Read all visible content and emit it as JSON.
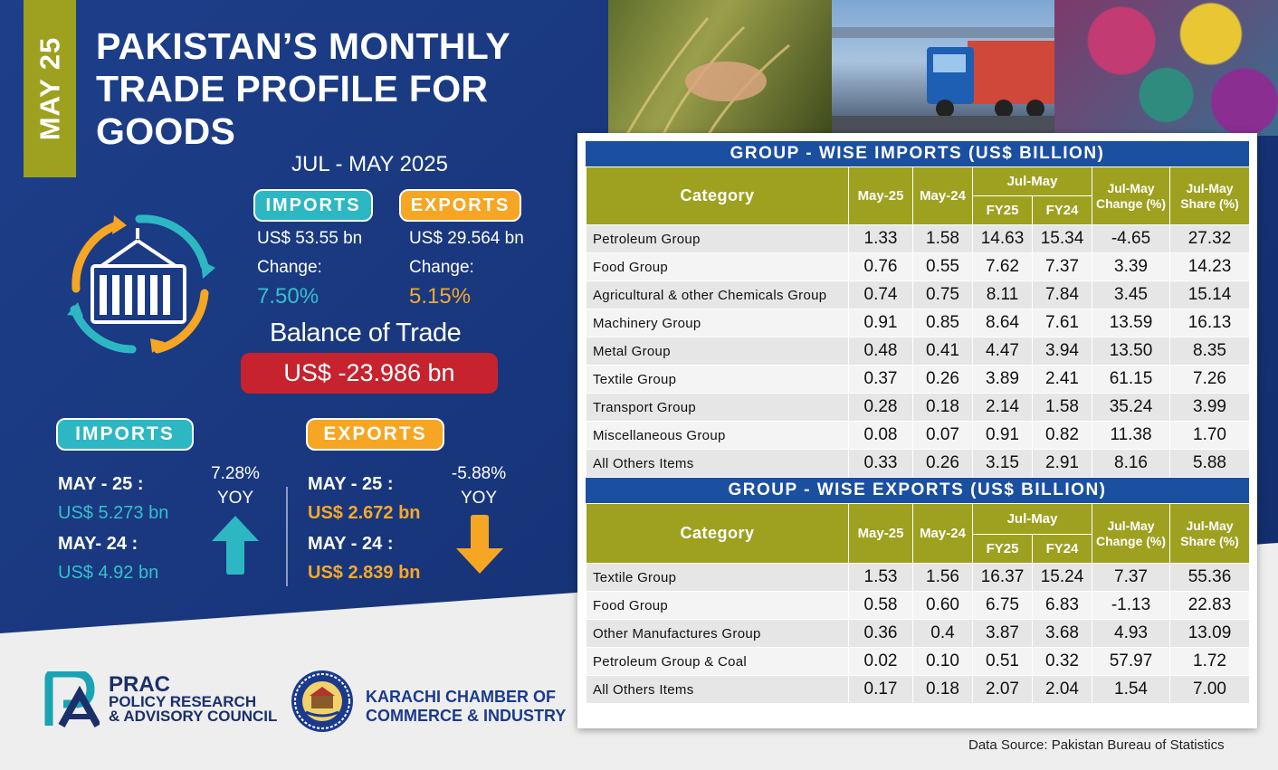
{
  "month_tag": "MAY 25",
  "title": "PAKISTAN’S MONTHLY TRADE PROFILE FOR GOODS",
  "period": "JUL - MAY  2025",
  "summary": {
    "imports": {
      "label": "IMPORTS",
      "value": "US$ 53.55 bn",
      "change_label": "Change:",
      "change": "7.50%"
    },
    "exports": {
      "label": "EXPORTS",
      "value": "US$ 29.564 bn",
      "change_label": "Change:",
      "change": "5.15%"
    }
  },
  "balance": {
    "label": "Balance of Trade",
    "value": "US$ -23.986 bn"
  },
  "monthly": {
    "imports": {
      "label": "IMPORTS",
      "cur_label": "MAY - 25 :",
      "cur_value": "US$ 5.273 bn",
      "prev_label": "MAY- 24 :",
      "prev_value": "US$ 4.92 bn",
      "yoy_pct": "7.28%",
      "yoy_label": "YOY",
      "direction": "up"
    },
    "exports": {
      "label": "EXPORTS",
      "cur_label": "MAY - 25 :",
      "cur_value": "US$ 2.672 bn",
      "prev_label": "MAY - 24 :",
      "prev_value": "US$ 2.839 bn",
      "yoy_pct": "-5.88%",
      "yoy_label": "YOY",
      "direction": "down"
    }
  },
  "headers": {
    "category": "Category",
    "may25": "May-25",
    "may24": "May-24",
    "jul_may": "Jul-May",
    "fy25": "FY25",
    "fy24": "FY24",
    "change": "Jul-May Change (%)",
    "share": "Jul-May Share (%)"
  },
  "imports_table": {
    "title": "GROUP - WISE IMPORTS (US$ BILLION)",
    "rows": [
      {
        "category": "Petroleum Group",
        "may25": "1.33",
        "may24": "1.58",
        "fy25": "14.63",
        "fy24": "15.34",
        "change": "-4.65",
        "share": "27.32"
      },
      {
        "category": "Food Group",
        "may25": "0.76",
        "may24": "0.55",
        "fy25": "7.62",
        "fy24": "7.37",
        "change": "3.39",
        "share": "14.23"
      },
      {
        "category": "Agricultural & other Chemicals Group",
        "may25": "0.74",
        "may24": "0.75",
        "fy25": "8.11",
        "fy24": "7.84",
        "change": "3.45",
        "share": "15.14"
      },
      {
        "category": "Machinery Group",
        "may25": "0.91",
        "may24": "0.85",
        "fy25": "8.64",
        "fy24": "7.61",
        "change": "13.59",
        "share": "16.13"
      },
      {
        "category": "Metal Group",
        "may25": "0.48",
        "may24": "0.41",
        "fy25": "4.47",
        "fy24": "3.94",
        "change": "13.50",
        "share": "8.35"
      },
      {
        "category": "Textile Group",
        "may25": "0.37",
        "may24": "0.26",
        "fy25": "3.89",
        "fy24": "2.41",
        "change": "61.15",
        "share": "7.26"
      },
      {
        "category": "Transport Group",
        "may25": "0.28",
        "may24": "0.18",
        "fy25": "2.14",
        "fy24": "1.58",
        "change": "35.24",
        "share": "3.99"
      },
      {
        "category": "Miscellaneous Group",
        "may25": "0.08",
        "may24": "0.07",
        "fy25": "0.91",
        "fy24": "0.82",
        "change": "11.38",
        "share": "1.70"
      },
      {
        "category": "All Others Items",
        "may25": "0.33",
        "may24": "0.26",
        "fy25": "3.15",
        "fy24": "2.91",
        "change": "8.16",
        "share": "5.88"
      }
    ]
  },
  "exports_table": {
    "title": "GROUP - WISE EXPORTS (US$ BILLION)",
    "rows": [
      {
        "category": "Textile Group",
        "may25": "1.53",
        "may24": "1.56",
        "fy25": "16.37",
        "fy24": "15.24",
        "change": "7.37",
        "share": "55.36"
      },
      {
        "category": "Food Group",
        "may25": "0.58",
        "may24": "0.60",
        "fy25": "6.75",
        "fy24": "6.83",
        "change": "-1.13",
        "share": "22.83"
      },
      {
        "category": "Other Manufactures Group",
        "may25": "0.36",
        "may24": "0.4",
        "fy25": "3.87",
        "fy24": "3.68",
        "change": "4.93",
        "share": "13.09"
      },
      {
        "category": "Petroleum Group & Coal",
        "may25": "0.02",
        "may24": "0.10",
        "fy25": "0.51",
        "fy24": "0.32",
        "change": "57.97",
        "share": "1.72"
      },
      {
        "category": "All Others Items",
        "may25": "0.17",
        "may24": "0.18",
        "fy25": "2.07",
        "fy24": "2.04",
        "change": "1.54",
        "share": "7.00"
      }
    ]
  },
  "logos": {
    "prac_short": "PRAC",
    "prac_line1": "POLICY RESEARCH",
    "prac_line2": "& ADVISORY COUNCIL",
    "kcci_line1": "KARACHI CHAMBER OF",
    "kcci_line2": "COMMERCE & INDUSTRY"
  },
  "source": "Data Source: Pakistan Bureau of Statistics",
  "colors": {
    "navy": "#173479",
    "olive": "#9ea120",
    "teal": "#2db7c3",
    "orange": "#f6a623",
    "red": "#c6232f",
    "table_blue": "#1b4fa0"
  }
}
